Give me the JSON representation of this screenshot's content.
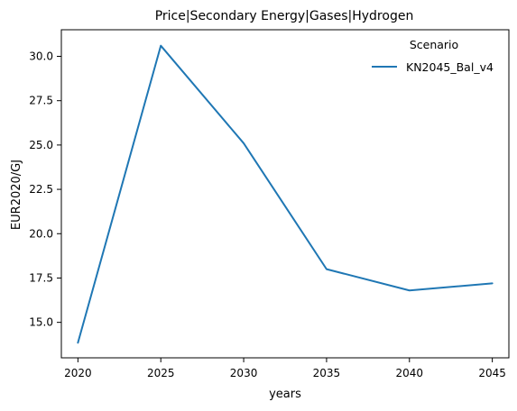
{
  "chart_data": {
    "type": "line",
    "title": "Price|Secondary Energy|Gases|Hydrogen",
    "xlabel": "years",
    "ylabel": "EUR2020/GJ",
    "x": [
      2020,
      2025,
      2030,
      2035,
      2040,
      2045
    ],
    "x_ticks": [
      "2020",
      "2025",
      "2030",
      "2035",
      "2040",
      "2045"
    ],
    "y_ticks": [
      "15.0",
      "17.5",
      "20.0",
      "22.5",
      "25.0",
      "27.5",
      "30.0"
    ],
    "xlim": [
      2019,
      2046
    ],
    "ylim": [
      13.0,
      31.5
    ],
    "grid": false,
    "legend": {
      "title": "Scenario",
      "placement": "top-right"
    },
    "series": [
      {
        "name": "KN2045_Bal_v4",
        "color": "#1f77b4",
        "values": [
          13.85,
          30.6,
          25.1,
          18.0,
          16.8,
          17.2
        ]
      }
    ]
  }
}
